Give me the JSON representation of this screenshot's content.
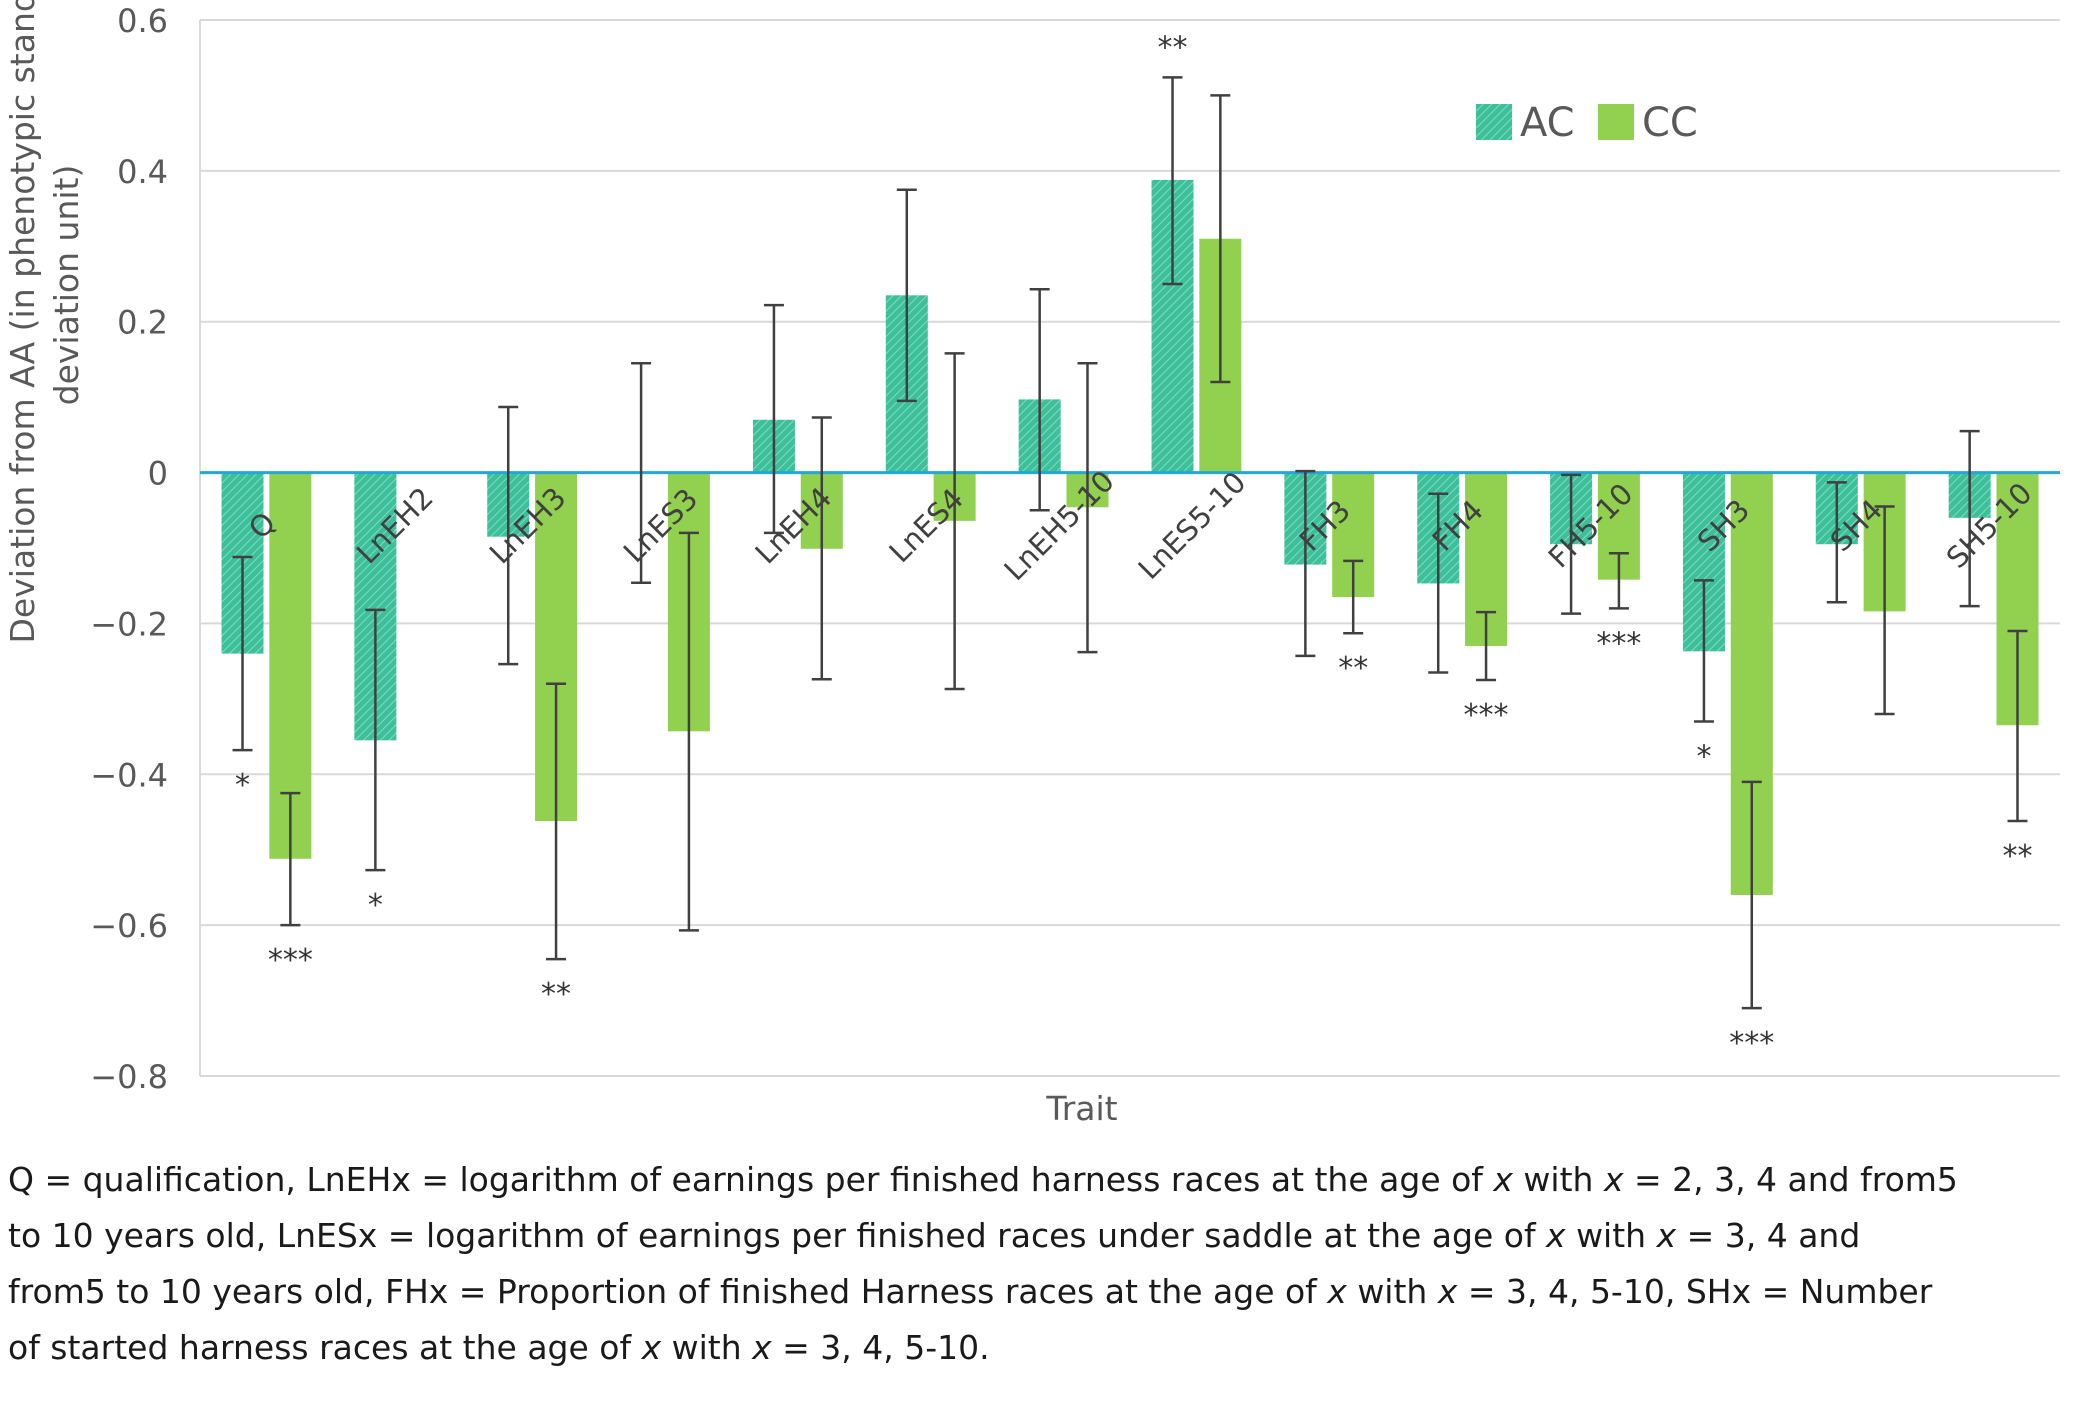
{
  "chart_data": {
    "type": "bar",
    "title": "",
    "xlabel": "Trait",
    "ylabel": "Deviation from AA (in phenotypic standard deviation unit)",
    "ylabel_lines": [
      "Deviation from AA (in phenotypic standard",
      "deviation unit)"
    ],
    "ylim": [
      -0.8,
      0.6
    ],
    "yticks": [
      0.6,
      0.4,
      0.2,
      0,
      -0.2,
      -0.4,
      -0.6,
      -0.8
    ],
    "ytick_labels": [
      "0.6",
      "0.4",
      "0.2",
      "0",
      "−0.2",
      "−0.4",
      "−0.6",
      "−0.8"
    ],
    "grid": true,
    "legend_position": "top-right",
    "categories": [
      "Q",
      "LnEH2",
      "LnEH3",
      "LnES3",
      "LnEH4",
      "LnES4",
      "LnEH5-10",
      "LnES5-10",
      "FH3",
      "FH4",
      "FH5-10",
      "SH3",
      "SH4",
      "SH5-10"
    ],
    "series": [
      {
        "name": "AC",
        "color": "#3dbf9a",
        "pattern": "hatched",
        "values": [
          -0.24,
          -0.355,
          -0.085,
          null,
          0.07,
          0.235,
          0.097,
          0.388,
          -0.122,
          -0.147,
          -0.095,
          -0.237,
          -0.095,
          -0.06
        ],
        "err_low": [
          -0.368,
          -0.527,
          -0.254,
          -0.146,
          -0.08,
          0.095,
          -0.05,
          0.25,
          -0.243,
          -0.265,
          -0.187,
          -0.33,
          -0.172,
          -0.177
        ],
        "err_high": [
          -0.112,
          -0.182,
          0.087,
          0.145,
          0.222,
          0.375,
          0.243,
          0.524,
          0.002,
          -0.028,
          -0.003,
          -0.143,
          -0.013,
          0.055
        ],
        "significance": [
          "*",
          "*",
          "",
          "",
          "",
          "",
          "",
          "**",
          "",
          "",
          "",
          "*",
          "",
          ""
        ]
      },
      {
        "name": "CC",
        "color": "#92d050",
        "pattern": "solid",
        "values": [
          -0.512,
          null,
          -0.462,
          -0.343,
          -0.101,
          -0.064,
          -0.046,
          0.31,
          -0.165,
          -0.23,
          -0.142,
          -0.56,
          -0.184,
          -0.335
        ],
        "err_low": [
          -0.6,
          null,
          -0.645,
          -0.607,
          -0.274,
          -0.287,
          -0.238,
          0.12,
          -0.213,
          -0.275,
          -0.18,
          -0.71,
          -0.32,
          -0.462
        ],
        "err_high": [
          -0.425,
          null,
          -0.28,
          -0.08,
          0.073,
          0.158,
          0.145,
          0.5,
          -0.117,
          -0.185,
          -0.107,
          -0.41,
          -0.045,
          -0.21
        ],
        "significance": [
          "***",
          "",
          "**",
          "",
          "",
          "",
          "",
          "",
          "**",
          "***",
          "***",
          "***",
          "",
          "**"
        ]
      }
    ]
  },
  "caption": {
    "lines": [
      [
        "Q = qualification, LnEHx = logarithm of earnings per finished harness races at the age of ",
        {
          "i": "x"
        },
        " with ",
        {
          "i": "x"
        },
        " = 2, 3, 4 and from5"
      ],
      [
        "to 10 years old, LnESx = logarithm of earnings per finished races under saddle at the age of ",
        {
          "i": "x"
        },
        " with ",
        {
          "i": "x"
        },
        " = 3, 4 and"
      ],
      [
        "from5 to 10 years old, FHx = Proportion of finished Harness races at the age of ",
        {
          "i": "x"
        },
        " with ",
        {
          "i": "x"
        },
        " = 3, 4, 5-10, SHx = Number"
      ],
      [
        "of started harness races at the age of ",
        {
          "i": "x"
        },
        " with ",
        {
          "i": "x"
        },
        " = 3, 4, 5-10."
      ]
    ]
  }
}
